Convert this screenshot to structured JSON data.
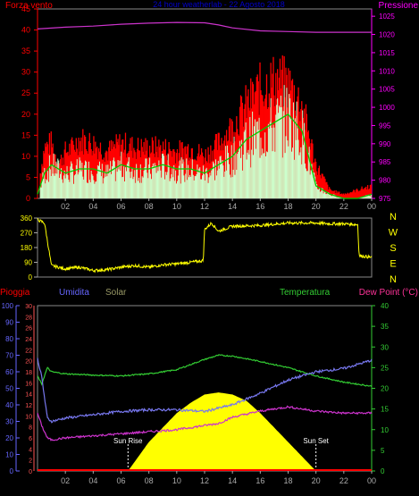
{
  "chart_data": [
    {
      "type": "line",
      "panel": "wind-pressure",
      "title": "24 hour weatherlab - 22 Agosto 2018",
      "left_label": "Forza vento",
      "right_label": "Pressione",
      "x_ticks": [
        "02",
        "04",
        "06",
        "08",
        "10",
        "12",
        "14",
        "16",
        "18",
        "20",
        "22",
        "00"
      ],
      "left_ticks": [
        "0",
        "5",
        "10",
        "15",
        "20",
        "25",
        "30",
        "35",
        "40",
        "45"
      ],
      "right_ticks": [
        "975",
        "980",
        "985",
        "990",
        "995",
        "1000",
        "1005",
        "1010",
        "1015",
        "1020",
        "1025"
      ],
      "x_range": [
        0,
        24
      ],
      "left_range": [
        0,
        45
      ],
      "right_range": [
        975,
        1027
      ],
      "colors": {
        "gust": "#ff0000",
        "avg": "#00cc00",
        "wind": "#ccffcc",
        "pressure": "#cc33cc",
        "left_axis": "#ff0000",
        "right_axis": "#ff00ff"
      },
      "series": [
        {
          "name": "Pressione",
          "axis": "right",
          "x": [
            0,
            2,
            4,
            6,
            8,
            10,
            12,
            13,
            14,
            16,
            18,
            20,
            22,
            24
          ],
          "values": [
            1021.5,
            1022.0,
            1022.3,
            1022.8,
            1023.1,
            1023.3,
            1023.2,
            1022.6,
            1021.8,
            1021.0,
            1020.8,
            1020.6,
            1020.6,
            1020.6
          ]
        },
        {
          "name": "gust",
          "axis": "left",
          "x": [
            0,
            0.5,
            1,
            1.5,
            2,
            2.5,
            3,
            4,
            5,
            6,
            7,
            8,
            9,
            10,
            11,
            12,
            13,
            14,
            15,
            16,
            17,
            18,
            19,
            20,
            21,
            22,
            23,
            24
          ],
          "values": [
            2,
            12,
            13,
            8,
            11,
            12,
            14,
            13,
            11,
            13,
            12,
            12,
            12,
            11,
            12,
            10,
            13,
            17,
            22,
            26,
            28,
            27,
            22,
            8,
            2,
            1,
            2,
            3
          ]
        },
        {
          "name": "average",
          "axis": "left",
          "x": [
            0,
            0.5,
            1,
            2,
            3,
            4,
            5,
            6,
            7,
            8,
            9,
            10,
            11,
            12,
            13,
            14,
            15,
            16,
            17,
            18,
            19,
            20,
            21,
            22,
            23,
            24
          ],
          "values": [
            1,
            6,
            8,
            6,
            7,
            7,
            6,
            8,
            7,
            7,
            8,
            7,
            7,
            6,
            8,
            10,
            14,
            16,
            18,
            20,
            16,
            3,
            1,
            0,
            0,
            1
          ]
        }
      ]
    },
    {
      "type": "line",
      "panel": "wind-direction",
      "left_ticks": [
        "0",
        "90",
        "180",
        "270",
        "360"
      ],
      "right_labels": [
        "N",
        "W",
        "S",
        "E",
        "N"
      ],
      "y_range": [
        0,
        360
      ],
      "color": "#ffff00",
      "x": [
        0,
        0.5,
        1,
        2,
        3,
        4,
        5,
        6,
        7,
        8,
        9,
        10,
        11,
        11.9,
        12,
        12.5,
        13,
        14,
        16,
        18,
        20,
        21,
        22,
        23,
        23.1,
        24
      ],
      "values": [
        350,
        330,
        70,
        50,
        60,
        40,
        45,
        60,
        70,
        60,
        75,
        80,
        90,
        100,
        290,
        330,
        280,
        310,
        315,
        330,
        330,
        325,
        325,
        320,
        130,
        120
      ]
    },
    {
      "type": "area",
      "panel": "rain-hum-solar-temp",
      "labels": {
        "rain": "Pioggia",
        "humidity": "Umidita",
        "solar": "Solar",
        "temperature": "Temperatura",
        "dewpoint": "Dew Point (°C)"
      },
      "left_ticks_humidity": [
        "0",
        "10",
        "20",
        "30",
        "40",
        "50",
        "60",
        "70",
        "80",
        "90",
        "100"
      ],
      "left_ticks_rain": [
        "0",
        "2",
        "4",
        "6",
        "8",
        "10",
        "12",
        "14",
        "16",
        "18",
        "20",
        "22",
        "24",
        "26",
        "28",
        "30"
      ],
      "right_ticks": [
        "0",
        "5",
        "10",
        "15",
        "20",
        "25",
        "30",
        "35",
        "40"
      ],
      "x_ticks": [
        "02",
        "04",
        "06",
        "08",
        "10",
        "12",
        "14",
        "16",
        "18",
        "20",
        "22",
        "00"
      ],
      "sunrise_label": "Sun Rise",
      "sunset_label": "Sun Set",
      "sunrise": 6.5,
      "sunset": 20.0,
      "colors": {
        "rain": "#ff0000",
        "humidity": "#7777ee",
        "solar": "#ffff00",
        "temperature": "#33cc33",
        "dewpoint": "#cc33cc",
        "rain_axis": "#ff5555",
        "humidity_axis": "#6666ff",
        "temp_axis": "#33cc33"
      },
      "series": [
        {
          "name": "Temperatura",
          "axis": "right",
          "x": [
            0,
            0.3,
            0.7,
            1,
            2,
            4,
            6,
            8,
            10,
            12,
            13,
            14,
            16,
            18,
            20,
            22,
            23,
            24
          ],
          "values": [
            23,
            21,
            25,
            24,
            23.5,
            23.2,
            23.0,
            23.5,
            24.5,
            27.0,
            28.0,
            27.8,
            26.5,
            25.0,
            23.0,
            21.5,
            21.0,
            20.5
          ]
        },
        {
          "name": "Dew Point",
          "axis": "right",
          "x": [
            0,
            0.3,
            0.7,
            1,
            2,
            4,
            6,
            8,
            10,
            12,
            13,
            14,
            16,
            18,
            20,
            22,
            24
          ],
          "values": [
            14,
            11,
            8,
            7.5,
            8,
            8.5,
            9,
            9.5,
            10,
            11,
            11.5,
            13,
            14.5,
            15.5,
            14.5,
            14,
            14
          ]
        },
        {
          "name": "Umidita",
          "axis": "left-humidity",
          "x": [
            0,
            0.3,
            0.7,
            1,
            2,
            4,
            6,
            8,
            10,
            12,
            13,
            14,
            16,
            18,
            20,
            22,
            24
          ],
          "values": [
            68,
            57,
            32,
            30,
            32,
            34,
            36,
            37,
            37,
            36,
            38,
            40,
            47,
            55,
            60,
            62,
            67
          ]
        },
        {
          "name": "Solar",
          "axis": "right",
          "x": [
            6.5,
            8,
            10,
            11,
            12,
            13,
            14,
            15,
            16,
            18,
            20
          ],
          "values": [
            0,
            7,
            14,
            16.5,
            18.5,
            19,
            18.5,
            17,
            14,
            7,
            0
          ]
        },
        {
          "name": "Pioggia",
          "axis": "left-rain",
          "x": [
            0,
            24
          ],
          "values": [
            0,
            0
          ]
        }
      ]
    }
  ]
}
